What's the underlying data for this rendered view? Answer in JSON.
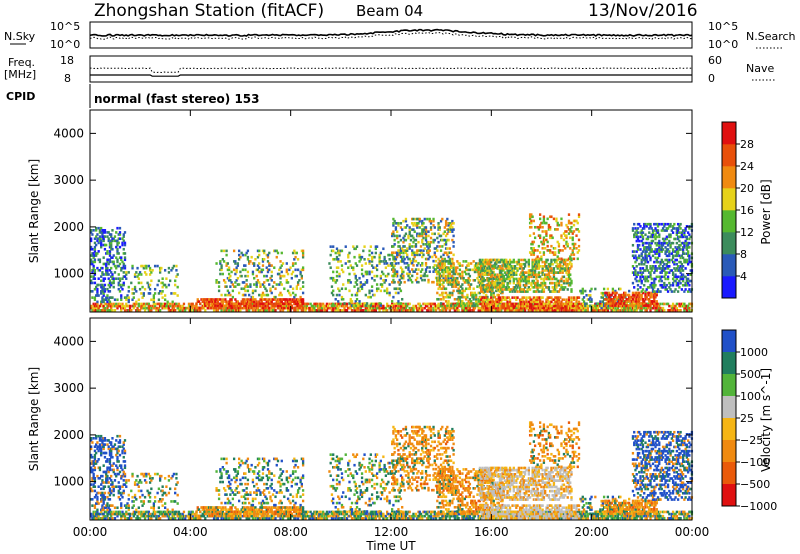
{
  "header": {
    "station": "Zhongshan Station (fitACF)",
    "beam": "Beam 04",
    "date": "13/Nov/2016"
  },
  "noise_panel": {
    "left_label": "N.Sky",
    "right_label": "N.Search",
    "left_ticks": [
      "10^5",
      "10^0"
    ],
    "right_ticks": [
      "10^5",
      "10^0"
    ]
  },
  "freq_panel": {
    "left_label_line1": "Freq.",
    "left_label_line2": "[MHz]",
    "right_label": "Nave",
    "left_ticks": [
      "18",
      "8"
    ],
    "right_ticks": [
      "60",
      "0"
    ],
    "cpid_label": "CPID",
    "cpid_text": "normal (fast stereo) 153"
  },
  "colors": {
    "power": [
      "#1a1aff",
      "#2a5ab8",
      "#3c8c5c",
      "#55b830",
      "#e6d21a",
      "#f08a10",
      "#e8500a",
      "#e01010"
    ],
    "velocity_pos": [
      "#2050c8",
      "#207e5e",
      "#52b43a"
    ],
    "velocity_neu": "#bfbfbf",
    "velocity_neg": [
      "#f5b515",
      "#f08a10",
      "#ea5a0a",
      "#e01010"
    ]
  },
  "chart_data": [
    {
      "type": "heatmap",
      "panel": "power",
      "ylabel": "Slant Range [km]",
      "yticks": [
        "1000",
        "2000",
        "3000",
        "4000"
      ],
      "ylim": [
        180,
        4500
      ],
      "xlabel": "Time UT",
      "xticks": [
        "00:00",
        "04:00",
        "08:00",
        "12:00",
        "16:00",
        "20:00",
        "00:00"
      ],
      "xlim": [
        0,
        24
      ],
      "colorbar_label": "Power [dB]",
      "colorbar_ticks": [
        "4",
        "8",
        "12",
        "16",
        "20",
        "24",
        "28"
      ],
      "colorbar_range": [
        0,
        30
      ]
    },
    {
      "type": "heatmap",
      "panel": "velocity",
      "ylabel": "Slant Range [km]",
      "yticks": [
        "1000",
        "2000",
        "3000",
        "4000"
      ],
      "ylim": [
        180,
        4500
      ],
      "xlabel": "Time UT",
      "xticks": [
        "00:00",
        "04:00",
        "08:00",
        "12:00",
        "16:00",
        "20:00",
        "00:00"
      ],
      "xlim": [
        0,
        24
      ],
      "colorbar_label": "Velocity [m s^-1]",
      "colorbar_ticks": [
        "1000",
        "500",
        "100",
        "25",
        "−25",
        "−100",
        "−500",
        "−1000"
      ]
    }
  ]
}
